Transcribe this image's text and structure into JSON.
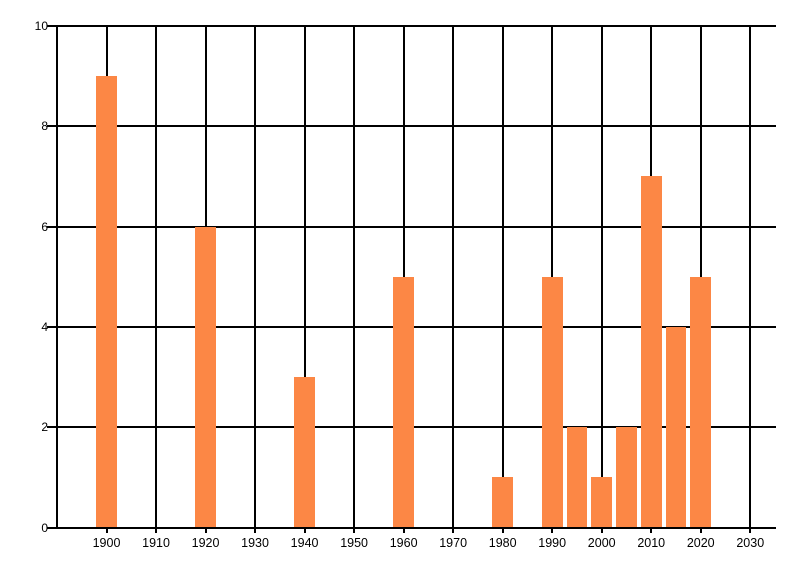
{
  "chart_data": {
    "type": "bar",
    "title": "",
    "xlabel": "",
    "ylabel": "",
    "x": [
      1900,
      1920,
      1940,
      1960,
      1980,
      1990,
      1995,
      2000,
      2005,
      2010,
      2015,
      2020
    ],
    "values": [
      9,
      6,
      3,
      5,
      1,
      5,
      2,
      1,
      2,
      7,
      4,
      5
    ],
    "x_ticks": [
      1900,
      1910,
      1920,
      1930,
      1940,
      1950,
      1960,
      1970,
      1980,
      1990,
      2000,
      2010,
      2020,
      2030
    ],
    "y_ticks": [
      0,
      2,
      4,
      6,
      8,
      10
    ],
    "xlim": [
      1890,
      2035.4
    ],
    "ylim": [
      0,
      10
    ],
    "bar_width_x_units": 4.2,
    "grid": true,
    "legend": null,
    "colors": {
      "bar": "#fc8745",
      "grid": "#000000",
      "axis": "#000000",
      "label": "#000000",
      "background": "#ffffff"
    }
  }
}
